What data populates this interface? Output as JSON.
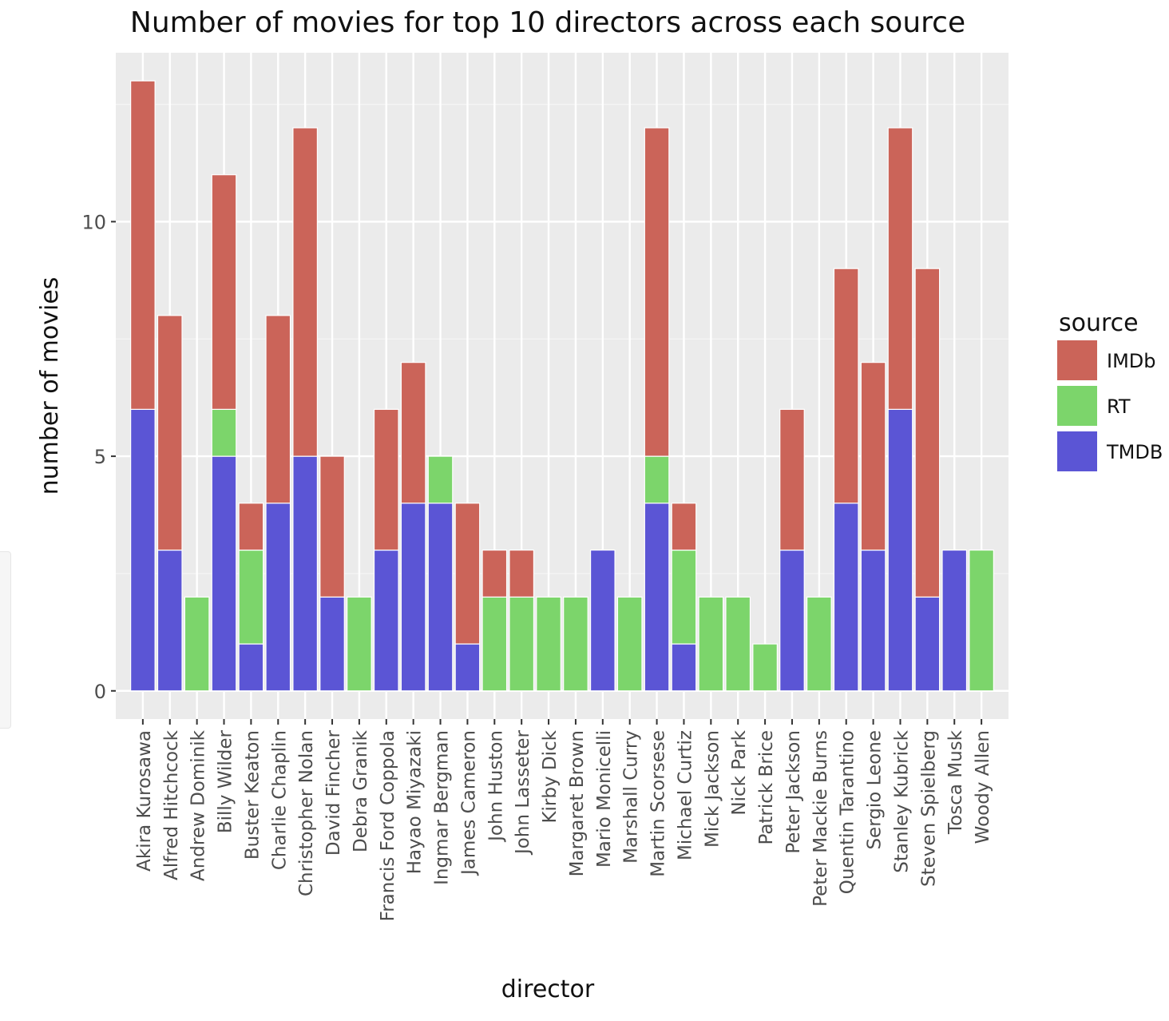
{
  "chart_data": {
    "type": "bar",
    "stacked": true,
    "title": "Number of movies for top 10 directors across each source",
    "xlabel": "director",
    "ylabel": "number of movies",
    "ylim": [
      0,
      13.6
    ],
    "yticks": [
      0,
      5,
      10
    ],
    "grid": true,
    "legend": {
      "title": "source",
      "placement": "right"
    },
    "categories": [
      "Akira Kurosawa",
      "Alfred Hitchcock",
      "Andrew Dominik",
      "Billy Wilder",
      "Buster Keaton",
      "Charlie Chaplin",
      "Christopher Nolan",
      "David Fincher",
      "Debra Granik",
      "Francis Ford Coppola",
      "Hayao Miyazaki",
      "Ingmar Bergman",
      "James Cameron",
      "John Huston",
      "John Lasseter",
      "Kirby Dick",
      "Margaret Brown",
      "Mario Monicelli",
      "Marshall Curry",
      "Martin Scorsese",
      "Michael Curtiz",
      "Mick Jackson",
      "Nick Park",
      "Patrick Brice",
      "Peter Jackson",
      "Peter Mackie Burns",
      "Quentin Tarantino",
      "Sergio Leone",
      "Stanley Kubrick",
      "Steven Spielberg",
      "Tosca Musk",
      "Woody Allen"
    ],
    "series": [
      {
        "name": "TMDB",
        "color": "#5b55d5",
        "values": [
          6,
          3,
          0,
          5,
          1,
          4,
          5,
          2,
          0,
          3,
          4,
          4,
          1,
          0,
          0,
          0,
          0,
          3,
          0,
          4,
          1,
          0,
          0,
          0,
          3,
          0,
          4,
          3,
          6,
          2,
          3,
          0
        ]
      },
      {
        "name": "RT",
        "color": "#7cd56b",
        "values": [
          0,
          0,
          2,
          1,
          2,
          0,
          0,
          0,
          2,
          0,
          0,
          1,
          0,
          2,
          2,
          2,
          2,
          0,
          2,
          1,
          2,
          2,
          2,
          1,
          0,
          2,
          0,
          0,
          0,
          0,
          0,
          3
        ]
      },
      {
        "name": "IMDb",
        "color": "#cb6459",
        "values": [
          7,
          5,
          0,
          5,
          1,
          4,
          7,
          3,
          0,
          3,
          3,
          0,
          3,
          1,
          1,
          0,
          0,
          0,
          0,
          7,
          1,
          0,
          0,
          0,
          3,
          0,
          5,
          4,
          6,
          7,
          0,
          0
        ]
      }
    ],
    "legend_entries": [
      "IMDb",
      "RT",
      "TMDB"
    ]
  }
}
